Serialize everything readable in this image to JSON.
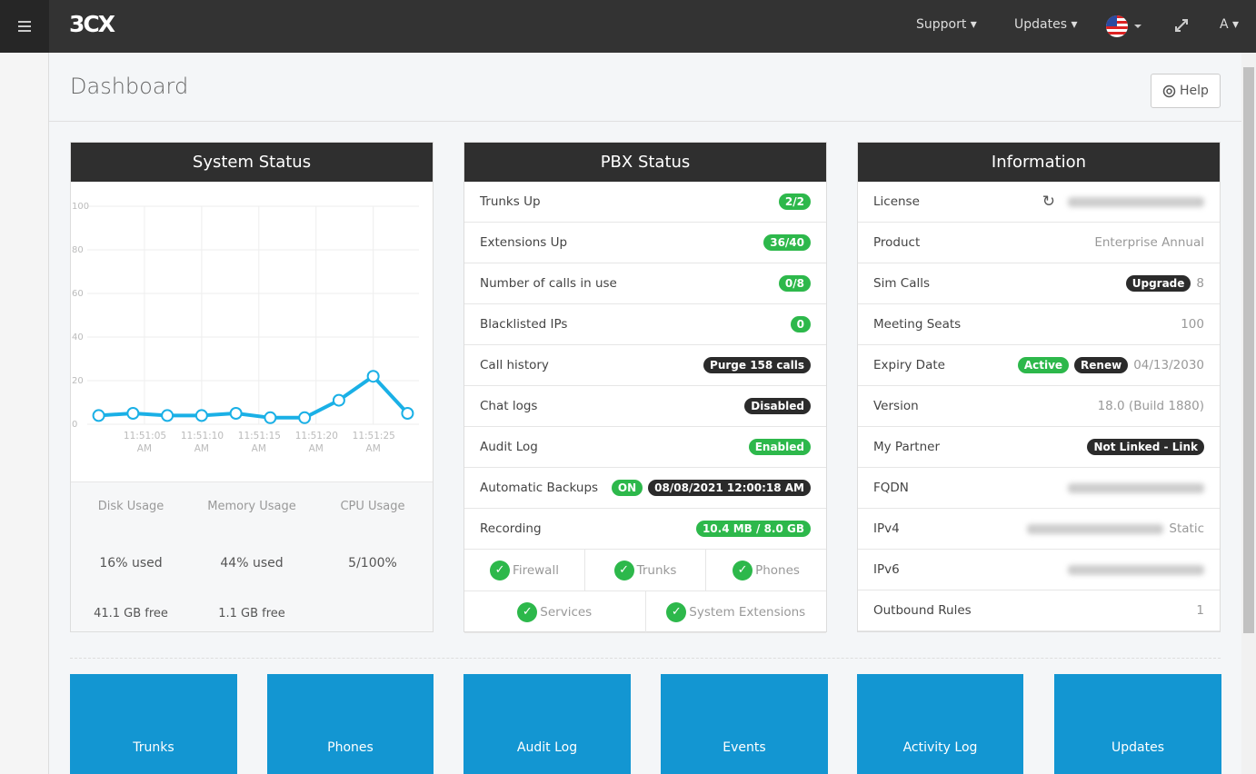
{
  "topbar": {
    "logo": "3CX",
    "menu": [
      "Support",
      "Updates"
    ],
    "user": "A"
  },
  "header": {
    "title": "Dashboard",
    "help": "Help"
  },
  "chart_data": {
    "type": "line",
    "x": [
      1,
      4,
      7,
      10,
      13,
      16,
      19,
      22,
      25,
      28
    ],
    "values": [
      4,
      5,
      4,
      4,
      5,
      3,
      3,
      11,
      22,
      5
    ],
    "color": "#1ab0e6",
    "xlim": [
      0,
      29
    ],
    "ylim": [
      0,
      100
    ],
    "yticks": [
      0,
      20,
      40,
      60,
      80,
      100
    ],
    "xticks": [
      {
        "value": 5,
        "label": "11:51:05 AM"
      },
      {
        "value": 10,
        "label": "11:51:10 AM"
      },
      {
        "value": 15,
        "label": "11:51:15 AM"
      },
      {
        "value": 20,
        "label": "11:51:20 AM"
      },
      {
        "value": 25,
        "label": "11:51:25 AM"
      }
    ],
    "grid": true
  },
  "system_status": {
    "title": "System Status",
    "gauges": [
      {
        "name": "Disk Usage",
        "value": 16,
        "value_label": "16% used",
        "detail": "41.1 GB free",
        "color": "#1ab0e6"
      },
      {
        "name": "Memory Usage",
        "value": 44,
        "value_label": "44% used",
        "detail": "1.1 GB free",
        "color": "#1ab0e6"
      },
      {
        "name": "CPU Usage",
        "value": 5,
        "value_label": "5/100%",
        "color": "#2ec24a"
      }
    ]
  },
  "pbx_status": {
    "title": "PBX Status",
    "rows": [
      {
        "label": "Trunks Up",
        "badges": [
          {
            "text": "2/2",
            "color": "green"
          }
        ]
      },
      {
        "label": "Extensions Up",
        "badges": [
          {
            "text": "36/40",
            "color": "green"
          }
        ]
      },
      {
        "label": "Number of calls in use",
        "badges": [
          {
            "text": "0/8",
            "color": "green"
          }
        ]
      },
      {
        "label": "Blacklisted IPs",
        "badges": [
          {
            "text": "0",
            "color": "green"
          }
        ]
      },
      {
        "label": "Call history",
        "badges": [
          {
            "text": "Purge 158 calls",
            "color": "dark"
          }
        ]
      },
      {
        "label": "Chat logs",
        "badges": [
          {
            "text": "Disabled",
            "color": "dark"
          }
        ]
      },
      {
        "label": "Audit Log",
        "badges": [
          {
            "text": "Enabled",
            "color": "green"
          }
        ]
      },
      {
        "label": "Automatic Backups",
        "badges": [
          {
            "text": "ON",
            "color": "green"
          },
          {
            "text": "08/08/2021 12:00:18 AM",
            "color": "dark"
          }
        ]
      },
      {
        "label": "Recording",
        "badges": [
          {
            "text": "10.4 MB / 8.0 GB",
            "color": "green"
          }
        ]
      }
    ],
    "checks": [
      [
        "Firewall",
        "Trunks",
        "Phones"
      ],
      [
        "Services",
        "System Extensions"
      ]
    ]
  },
  "information": {
    "title": "Information",
    "rows": [
      {
        "label": "License",
        "blurred": true,
        "refresh": true
      },
      {
        "label": "Product",
        "value": "Enterprise Annual"
      },
      {
        "label": "Sim Calls",
        "badges": [
          {
            "text": "Upgrade",
            "color": "dark"
          }
        ],
        "value": "8"
      },
      {
        "label": "Meeting Seats",
        "value": "100"
      },
      {
        "label": "Expiry Date",
        "badges": [
          {
            "text": "Active",
            "color": "green"
          },
          {
            "text": "Renew",
            "color": "dark"
          }
        ],
        "value": "04/13/2030"
      },
      {
        "label": "Version",
        "value": "18.0 (Build 1880)"
      },
      {
        "label": "My Partner",
        "badges": [
          {
            "text": "Not Linked - Link",
            "color": "dark"
          }
        ]
      },
      {
        "label": "FQDN",
        "blurred": true
      },
      {
        "label": "IPv4",
        "blurred": true,
        "value": "Static"
      },
      {
        "label": "IPv6",
        "blurred": true
      },
      {
        "label": "Outbound Rules",
        "value": "1"
      }
    ]
  },
  "tiles": [
    "Trunks",
    "Phones",
    "Audit Log",
    "Events",
    "Activity Log",
    "Updates"
  ]
}
